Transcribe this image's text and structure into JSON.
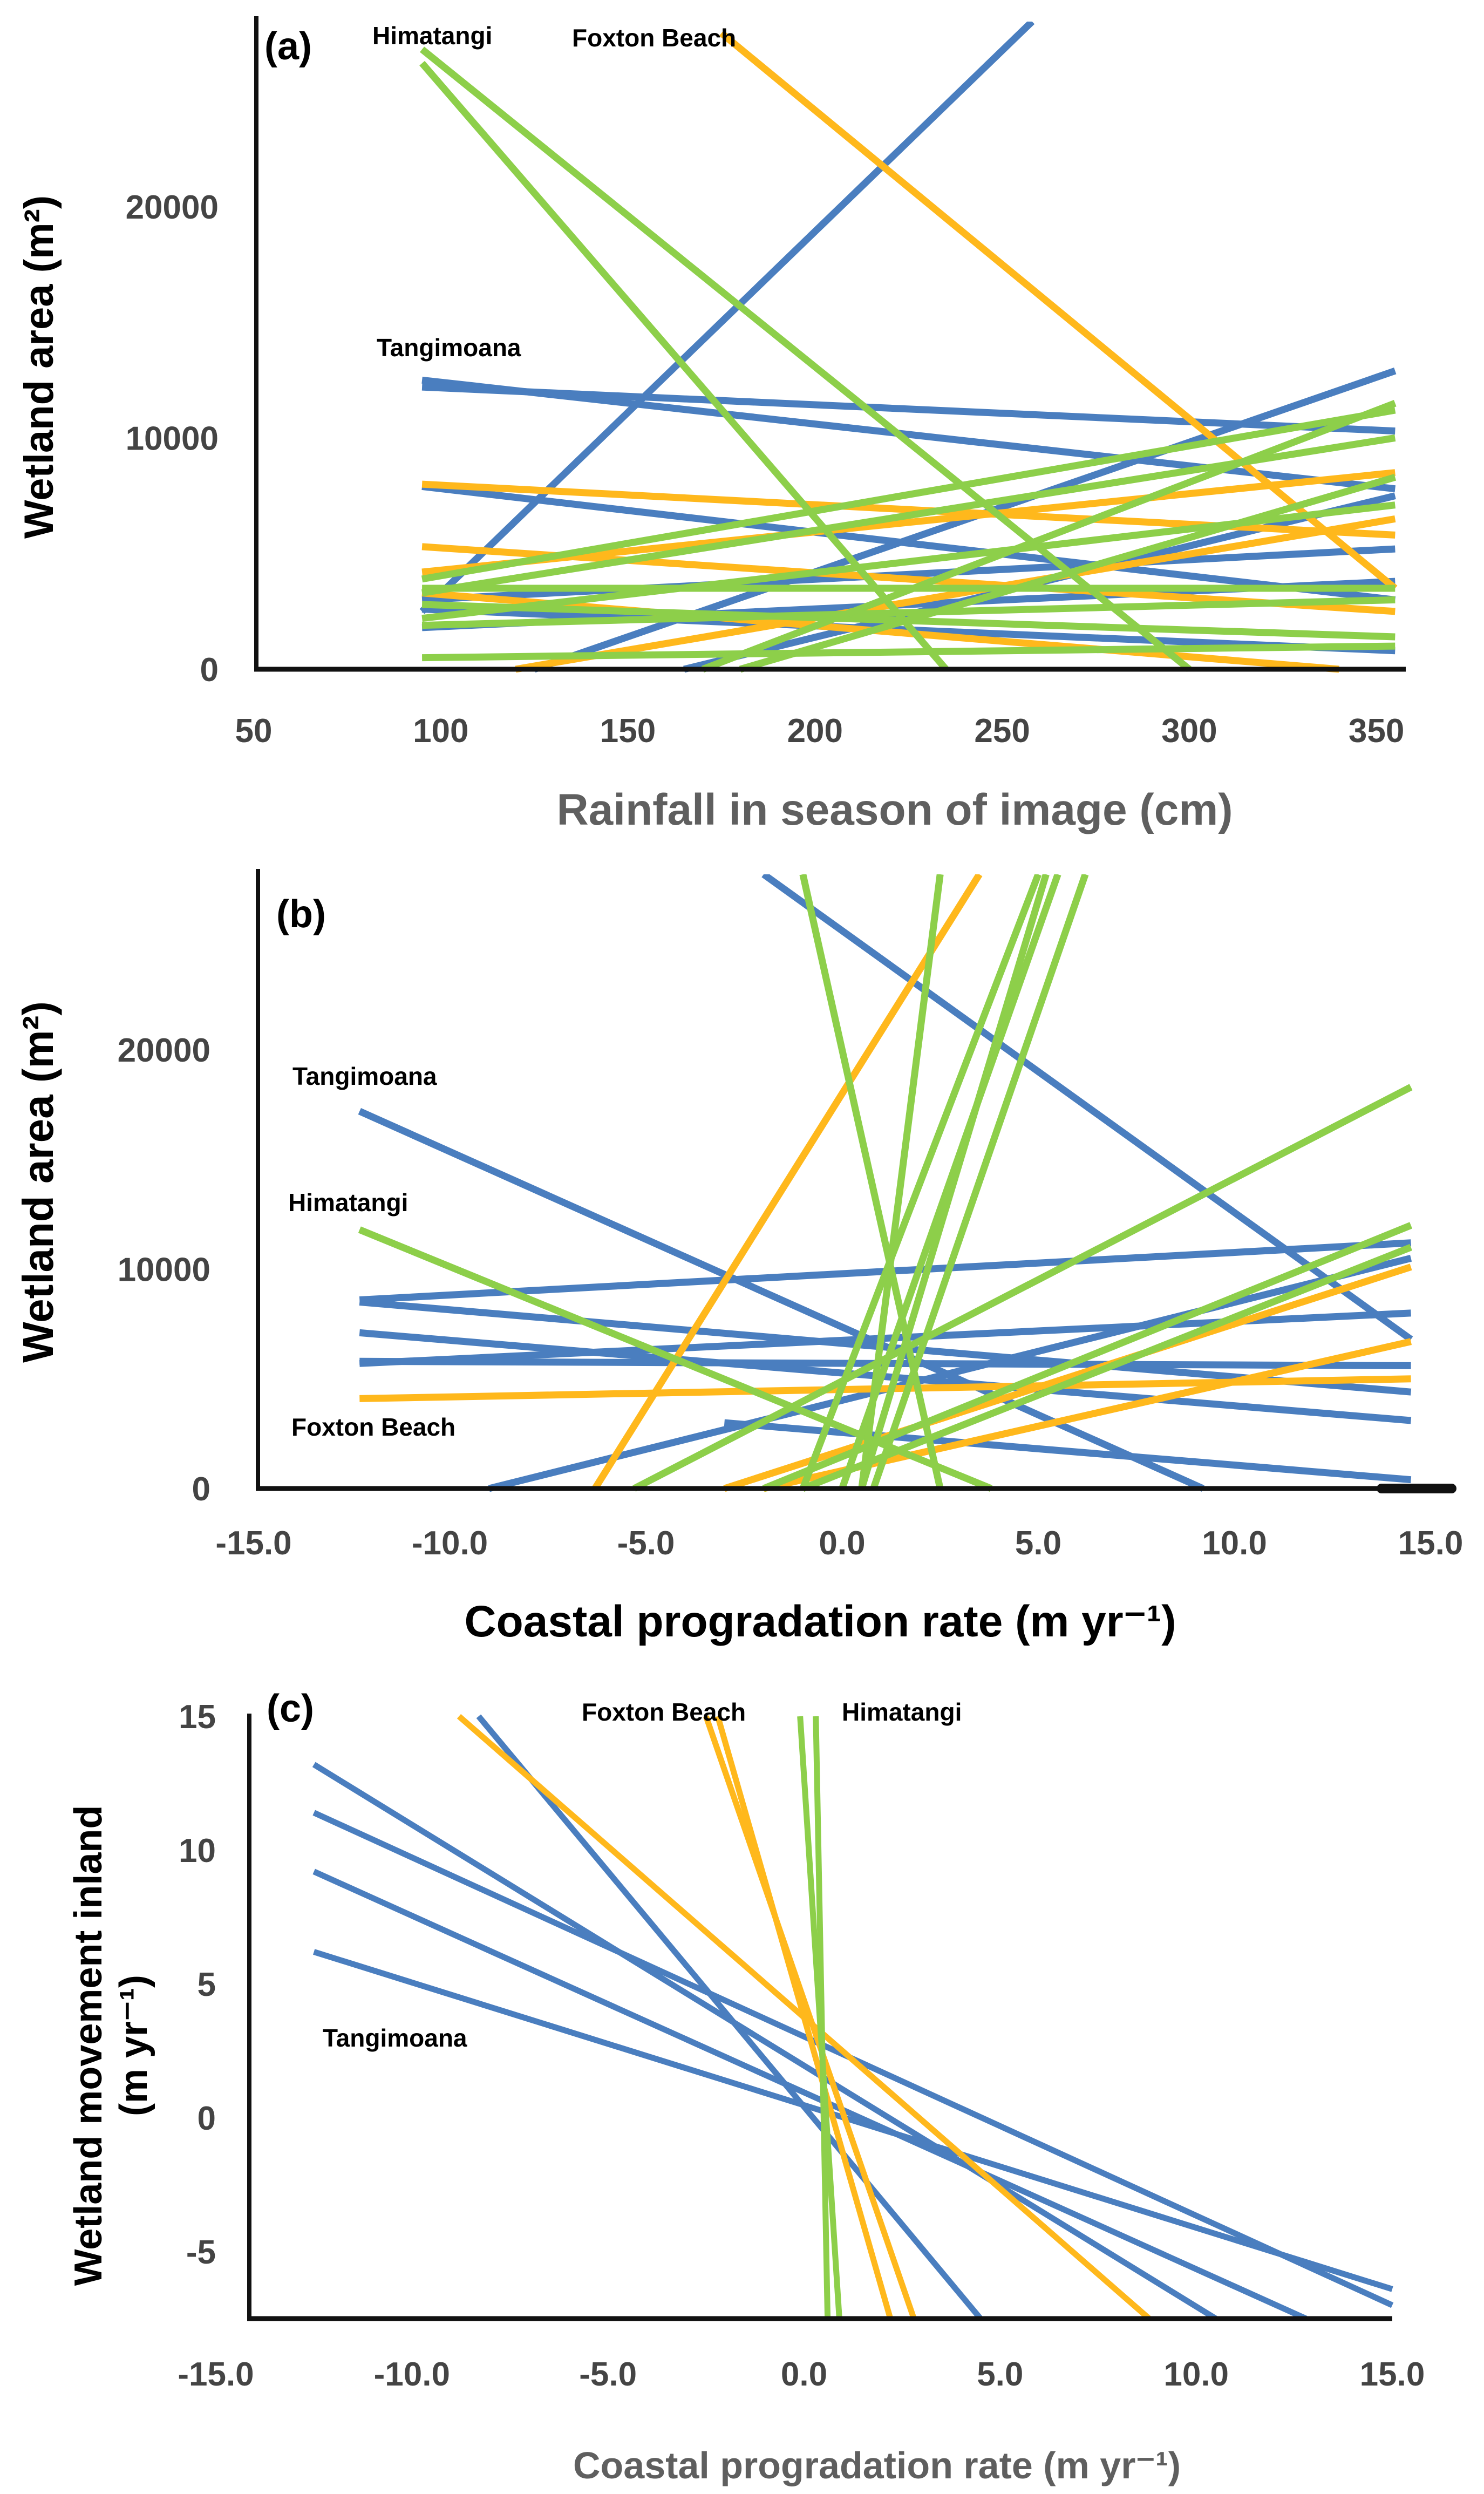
{
  "colors": {
    "tangimoana": "#4a7ebf",
    "foxton": "#ffb81c",
    "himatangi": "#8dcf4a",
    "axis": "#111111"
  },
  "chart_data": [
    {
      "type": "line",
      "panel_label": "(a)",
      "xlabel": "Rainfall in season of image (cm)",
      "ylabel": "Wetland area (m²)",
      "xlim": [
        50,
        360
      ],
      "ylim": [
        0,
        28000
      ],
      "xticks": [
        "50",
        "100",
        "150",
        "200",
        "250",
        "300",
        "350"
      ],
      "yticks": [
        "0",
        "10000",
        "20000"
      ],
      "site_labels": [
        {
          "text": "Himatangi",
          "site": "himatangi"
        },
        {
          "text": "Foxton Beach",
          "site": "foxton"
        },
        {
          "text": "Tangimoana",
          "site": "tangimoana"
        }
      ],
      "series": [
        {
          "site": "tangimoana",
          "x": [
            95,
            258
          ],
          "y": [
            2500,
            28000
          ]
        },
        {
          "site": "tangimoana",
          "x": [
            95,
            355
          ],
          "y": [
            12500,
            7800
          ]
        },
        {
          "site": "tangimoana",
          "x": [
            95,
            355
          ],
          "y": [
            12200,
            10300
          ]
        },
        {
          "site": "tangimoana",
          "x": [
            95,
            355
          ],
          "y": [
            7900,
            3000
          ]
        },
        {
          "site": "tangimoana",
          "x": [
            95,
            355
          ],
          "y": [
            3000,
            5200
          ]
        },
        {
          "site": "tangimoana",
          "x": [
            95,
            355
          ],
          "y": [
            2600,
            800
          ]
        },
        {
          "site": "tangimoana",
          "x": [
            95,
            355
          ],
          "y": [
            1800,
            3800
          ]
        },
        {
          "site": "tangimoana",
          "x": [
            125,
            355
          ],
          "y": [
            0,
            12900
          ]
        },
        {
          "site": "tangimoana",
          "x": [
            165,
            355
          ],
          "y": [
            0,
            7500
          ]
        },
        {
          "site": "foxton",
          "x": [
            175,
            355
          ],
          "y": [
            27500,
            3500
          ]
        },
        {
          "site": "foxton",
          "x": [
            95,
            355
          ],
          "y": [
            8000,
            5800
          ]
        },
        {
          "site": "foxton",
          "x": [
            95,
            355
          ],
          "y": [
            5300,
            2500
          ]
        },
        {
          "site": "foxton",
          "x": [
            95,
            355
          ],
          "y": [
            4200,
            8500
          ]
        },
        {
          "site": "foxton",
          "x": [
            95,
            340
          ],
          "y": [
            3300,
            0
          ]
        },
        {
          "site": "foxton",
          "x": [
            120,
            355
          ],
          "y": [
            0,
            6500
          ]
        },
        {
          "site": "himatangi",
          "x": [
            95,
            300
          ],
          "y": [
            26800,
            0
          ]
        },
        {
          "site": "himatangi",
          "x": [
            95,
            235
          ],
          "y": [
            26200,
            0
          ]
        },
        {
          "site": "himatangi",
          "x": [
            95,
            355
          ],
          "y": [
            3900,
            11200
          ]
        },
        {
          "site": "himatangi",
          "x": [
            95,
            355
          ],
          "y": [
            3300,
            10000
          ]
        },
        {
          "site": "himatangi",
          "x": [
            95,
            355
          ],
          "y": [
            2200,
            7100
          ]
        },
        {
          "site": "himatangi",
          "x": [
            95,
            355
          ],
          "y": [
            3500,
            3500
          ]
        },
        {
          "site": "himatangi",
          "x": [
            95,
            355
          ],
          "y": [
            2800,
            1400
          ]
        },
        {
          "site": "himatangi",
          "x": [
            95,
            355
          ],
          "y": [
            1900,
            3000
          ]
        },
        {
          "site": "himatangi",
          "x": [
            95,
            355
          ],
          "y": [
            500,
            1000
          ]
        },
        {
          "site": "himatangi",
          "x": [
            170,
            355
          ],
          "y": [
            0,
            11500
          ]
        },
        {
          "site": "himatangi",
          "x": [
            180,
            355
          ],
          "y": [
            0,
            8300
          ]
        }
      ]
    },
    {
      "type": "line",
      "panel_label": "(b)",
      "xlabel": "Coastal progradation rate (m yr⁻¹)",
      "ylabel": "Wetland area (m²)",
      "xlim": [
        -15,
        16.5
      ],
      "ylim": [
        0,
        28000
      ],
      "xticks": [
        "-15.0",
        "-10.0",
        "-5.0",
        "0.0",
        "5.0",
        "10.0",
        "15.0"
      ],
      "yticks": [
        "0",
        "10000",
        "20000"
      ],
      "site_labels": [
        {
          "text": "Tangimoana",
          "site": "tangimoana"
        },
        {
          "text": "Himatangi",
          "site": "himatangi"
        },
        {
          "text": "Foxton Beach",
          "site": "foxton"
        }
      ],
      "series": [
        {
          "site": "tangimoana",
          "x": [
            -2.0,
            14.5
          ],
          "y": [
            28000,
            6800
          ]
        },
        {
          "site": "tangimoana",
          "x": [
            -12.3,
            9.2
          ],
          "y": [
            17200,
            0
          ]
        },
        {
          "site": "tangimoana",
          "x": [
            -12.3,
            14.5
          ],
          "y": [
            8600,
            11200
          ]
        },
        {
          "site": "tangimoana",
          "x": [
            -12.3,
            14.5
          ],
          "y": [
            8500,
            4400
          ]
        },
        {
          "site": "tangimoana",
          "x": [
            -12.3,
            14.5
          ],
          "y": [
            7100,
            3100
          ]
        },
        {
          "site": "tangimoana",
          "x": [
            -12.3,
            14.5
          ],
          "y": [
            5700,
            8000
          ]
        },
        {
          "site": "tangimoana",
          "x": [
            -12.3,
            14.5
          ],
          "y": [
            5800,
            5600
          ]
        },
        {
          "site": "tangimoana",
          "x": [
            -9.0,
            14.5
          ],
          "y": [
            0,
            10500
          ]
        },
        {
          "site": "tangimoana",
          "x": [
            -3.0,
            14.5
          ],
          "y": [
            3000,
            400
          ]
        },
        {
          "site": "foxton",
          "x": [
            -6.3,
            3.5
          ],
          "y": [
            0,
            28000
          ]
        },
        {
          "site": "foxton",
          "x": [
            -12.3,
            14.5
          ],
          "y": [
            4100,
            5000
          ]
        },
        {
          "site": "foxton",
          "x": [
            -3.0,
            14.5
          ],
          "y": [
            0,
            10100
          ]
        },
        {
          "site": "foxton",
          "x": [
            -2.0,
            14.5
          ],
          "y": [
            0,
            6700
          ]
        },
        {
          "site": "himatangi",
          "x": [
            -12.3,
            3.8
          ],
          "y": [
            11800,
            0
          ]
        },
        {
          "site": "himatangi",
          "x": [
            -5.3,
            14.5
          ],
          "y": [
            0,
            18300
          ]
        },
        {
          "site": "himatangi",
          "x": [
            -2.0,
            14.5
          ],
          "y": [
            0,
            12000
          ]
        },
        {
          "site": "himatangi",
          "x": [
            -1.0,
            14.5
          ],
          "y": [
            0,
            11000
          ]
        },
        {
          "site": "himatangi",
          "x": [
            -1.0,
            2.5
          ],
          "y": [
            28000,
            0
          ]
        },
        {
          "site": "himatangi",
          "x": [
            0.5,
            2.5
          ],
          "y": [
            0,
            28000
          ]
        },
        {
          "site": "himatangi",
          "x": [
            -1.0,
            5.0
          ],
          "y": [
            0,
            28000
          ]
        },
        {
          "site": "himatangi",
          "x": [
            0.5,
            5.2
          ],
          "y": [
            0,
            28000
          ]
        },
        {
          "site": "himatangi",
          "x": [
            0.0,
            5.5
          ],
          "y": [
            0,
            28000
          ]
        },
        {
          "site": "himatangi",
          "x": [
            0.8,
            6.2
          ],
          "y": [
            0,
            28000
          ]
        }
      ]
    },
    {
      "type": "line",
      "panel_label": "(c)",
      "xlabel": "Coastal progradation rate (m yr⁻¹)",
      "ylabel_line1": "Wetland movement inland",
      "ylabel_line2": "(m yr⁻¹)",
      "xlim": [
        -15,
        15
      ],
      "ylim": [
        -7.5,
        15
      ],
      "xticks": [
        "-15.0",
        "-10.0",
        "-5.0",
        "0.0",
        "5.0",
        "10.0",
        "15.0"
      ],
      "yticks": [
        "-5",
        "0",
        "5",
        "10",
        "15"
      ],
      "site_labels": [
        {
          "text": "Foxton Beach",
          "site": "foxton"
        },
        {
          "text": "Himatangi",
          "site": "himatangi"
        },
        {
          "text": "Tangimoana",
          "site": "tangimoana"
        }
      ],
      "series": [
        {
          "site": "tangimoana",
          "x": [
            -12.5,
            10.5
          ],
          "y": [
            13.2,
            -7.5
          ]
        },
        {
          "site": "tangimoana",
          "x": [
            -12.5,
            15.0
          ],
          "y": [
            11.4,
            -7.0
          ]
        },
        {
          "site": "tangimoana",
          "x": [
            -12.5,
            12.8
          ],
          "y": [
            9.2,
            -7.5
          ]
        },
        {
          "site": "tangimoana",
          "x": [
            -12.5,
            15.0
          ],
          "y": [
            6.2,
            -6.4
          ]
        },
        {
          "site": "tangimoana",
          "x": [
            -8.3,
            4.5
          ],
          "y": [
            15.0,
            -7.5
          ]
        },
        {
          "site": "foxton",
          "x": [
            -8.8,
            8.8
          ],
          "y": [
            15.0,
            -7.5
          ]
        },
        {
          "site": "foxton",
          "x": [
            -2.5,
            2.8
          ],
          "y": [
            15.0,
            -7.5
          ]
        },
        {
          "site": "foxton",
          "x": [
            -2.2,
            2.2
          ],
          "y": [
            15.0,
            -7.5
          ]
        },
        {
          "site": "himatangi",
          "x": [
            -0.1,
            0.9
          ],
          "y": [
            15.0,
            -7.5
          ]
        },
        {
          "site": "himatangi",
          "x": [
            0.3,
            0.6
          ],
          "y": [
            15.0,
            -7.5
          ]
        }
      ]
    }
  ]
}
